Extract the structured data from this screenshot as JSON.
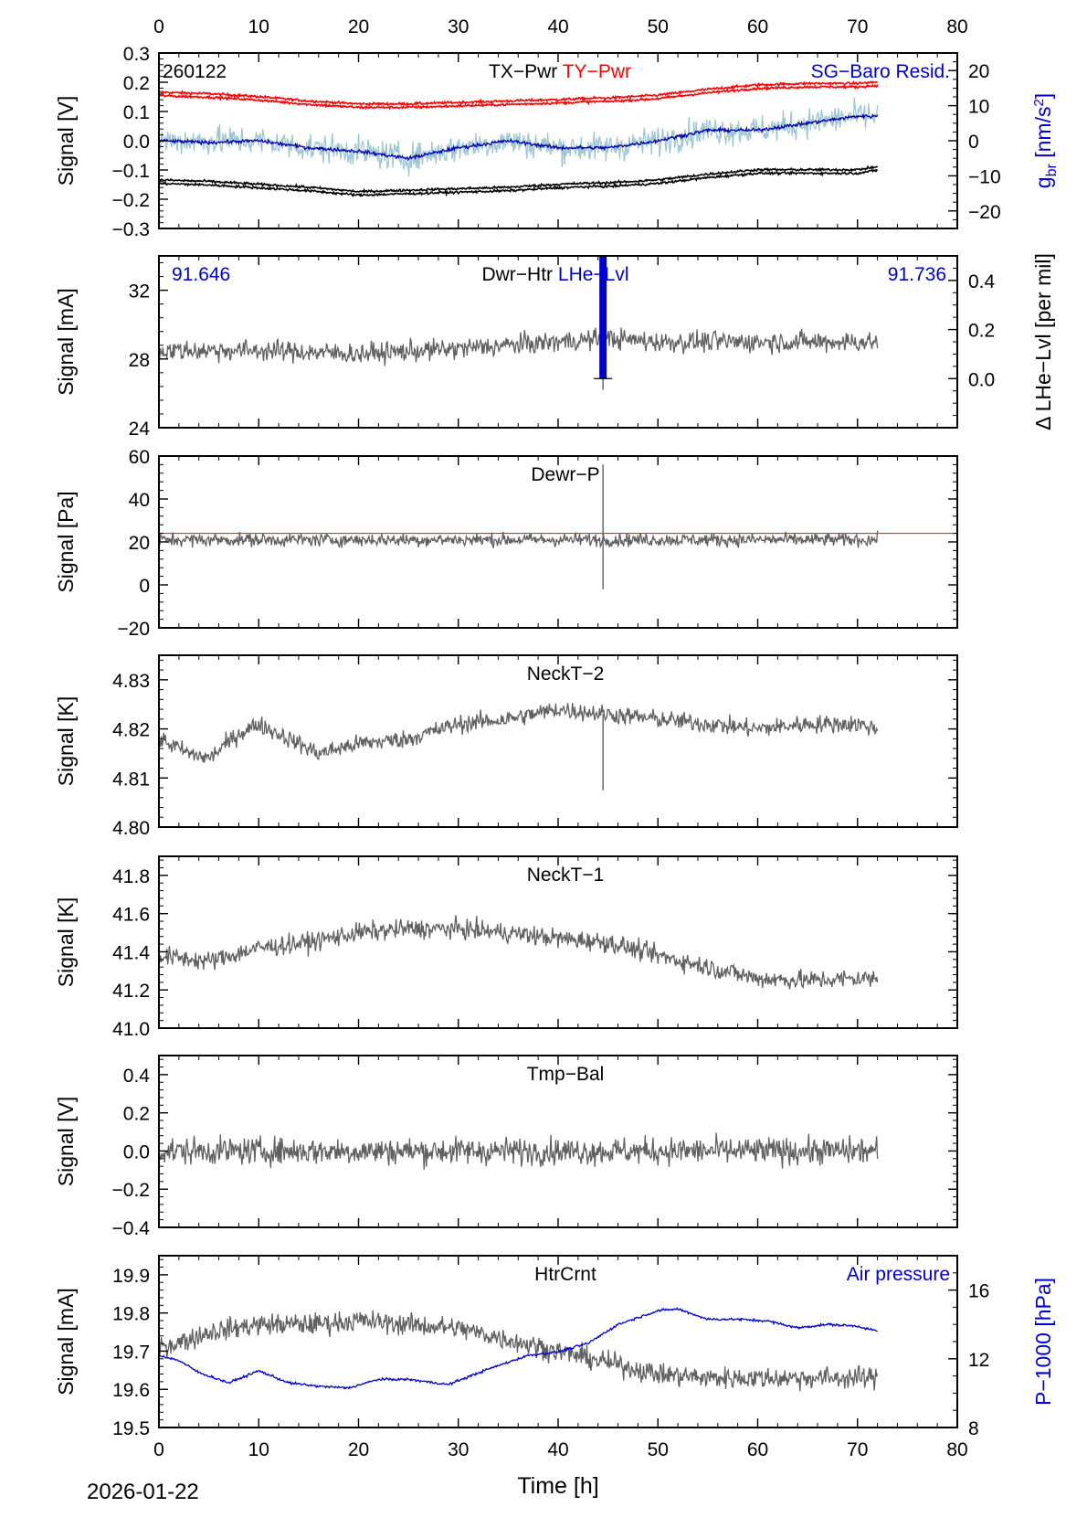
{
  "chart_data": {
    "type": "line",
    "time_series_note_free": true,
    "x_axis": {
      "label": "Time [h]",
      "range": [
        0,
        80
      ],
      "ticks": [
        "0",
        "10",
        "20",
        "30",
        "40",
        "50",
        "60",
        "70",
        "80"
      ]
    },
    "date_label": "2026-01-22",
    "panels": [
      {
        "title_parts": [
          {
            "text": "TX−Pwr",
            "color": "#000000"
          },
          {
            "text": "TY−Pwr",
            "color": "#ff0000"
          }
        ],
        "left_corner_text": "260122",
        "right_text": "SG−Baro Resid.",
        "right_text_color": "#0000cc",
        "ylabel": "Signal [V]",
        "ylim": [
          -0.3,
          0.3
        ],
        "yticks": [
          "−0.3",
          "−0.2",
          "−0.1",
          "0.0",
          "0.1",
          "0.2",
          "0.3"
        ],
        "y2": {
          "label_main": "g",
          "label_sub": "br",
          "label_tail": " [nm/s",
          "label_sup": "2",
          "label_end": "]",
          "color": "#0000cc",
          "ylim": [
            -25,
            25
          ],
          "ticks": [
            "−20",
            "−10",
            "0",
            "10",
            "20"
          ]
        },
        "series": [
          {
            "axis": "y",
            "color": "#ff0000",
            "x": [
              0,
              5,
              10,
              15,
              20,
              25,
              30,
              35,
              40,
              44,
              45,
              50,
              55,
              60,
              65,
              70,
              72
            ],
            "y": [
              0.16,
              0.155,
              0.145,
              0.13,
              0.12,
              0.12,
              0.125,
              0.13,
              0.135,
              0.14,
              0.14,
              0.15,
              0.17,
              0.185,
              0.19,
              0.19,
              0.195
            ],
            "noise": 0.004,
            "double_offset": 0.012
          },
          {
            "axis": "y",
            "color": "#000000",
            "x": [
              0,
              5,
              10,
              15,
              20,
              25,
              30,
              35,
              40,
              44,
              45,
              50,
              55,
              60,
              65,
              70,
              72
            ],
            "y": [
              -0.14,
              -0.145,
              -0.155,
              -0.165,
              -0.18,
              -0.175,
              -0.17,
              -0.165,
              -0.155,
              -0.15,
              -0.15,
              -0.14,
              -0.12,
              -0.105,
              -0.105,
              -0.105,
              -0.095
            ],
            "noise": 0.004,
            "double_offset": 0.012
          },
          {
            "axis": "y2",
            "color": "#9fc6d4",
            "x": [
              0,
              5,
              10,
              15,
              20,
              25,
              30,
              35,
              40,
              45,
              50,
              55,
              60,
              65,
              70,
              72
            ],
            "y": [
              0,
              0,
              0,
              -2,
              -3,
              -5,
              -2,
              0,
              -2,
              -2,
              0,
              3,
              3,
              5,
              7,
              7
            ],
            "noise": 4
          },
          {
            "axis": "y2",
            "color": "#0000aa",
            "x": [
              0,
              5,
              10,
              15,
              20,
              25,
              30,
              35,
              40,
              45,
              50,
              55,
              60,
              65,
              70,
              72
            ],
            "y": [
              0,
              -0.5,
              0,
              -2,
              -3,
              -5,
              -2,
              0,
              -2,
              -2,
              0,
              3,
              3,
              5,
              7,
              7
            ],
            "noise": 0.5
          }
        ]
      },
      {
        "title_parts": [
          {
            "text": "Dwr−Htr",
            "color": "#000000"
          },
          {
            "text": "LHe−Lvl",
            "color": "#0000cc"
          }
        ],
        "left_corner_text": "91.646",
        "right_corner_text": "91.736",
        "corner_color": "#0000cc",
        "ylabel": "Signal [mA]",
        "ylim": [
          24,
          34
        ],
        "yticks": [
          "24",
          "28",
          "32"
        ],
        "y2": {
          "label_main": "Δ LHe−Lvl [per mil]",
          "color": "#000000",
          "ylim": [
            -0.2,
            0.5
          ],
          "ticks": [
            "0.0",
            "0.2",
            "0.4"
          ]
        },
        "series": [
          {
            "axis": "y",
            "color": "#606060",
            "x": [
              0,
              10,
              20,
              30,
              40,
              45,
              50,
              60,
              70,
              72
            ],
            "y": [
              28.5,
              28.5,
              28.3,
              28.6,
              29.0,
              29.2,
              29.0,
              29.0,
              29.0,
              29.0
            ],
            "noise": 0.6,
            "spike_at": 44.5,
            "spike_value": 26.2
          }
        ],
        "level_bar": {
          "x": 44.5,
          "y_top": 0.5,
          "y_bottom": 0.0,
          "color": "#0000cc"
        }
      },
      {
        "title_parts": [
          {
            "text": "Dewr−P",
            "color": "#000000"
          }
        ],
        "ylabel": "Signal [Pa]",
        "ylim": [
          -20,
          60
        ],
        "yticks": [
          "−20",
          "0",
          "20",
          "40",
          "60"
        ],
        "series": [
          {
            "axis": "y",
            "color": "#606060",
            "x": [
              0,
              72
            ],
            "y": [
              21,
              21
            ],
            "noise": 3,
            "spike_at": 44.5,
            "spike_value": 56,
            "spike_min": -2
          }
        ],
        "reference_line": {
          "y": 24,
          "x": [
            0,
            80
          ],
          "color": "#ff0000"
        }
      },
      {
        "title_parts": [
          {
            "text": "NeckT−2",
            "color": "#000000"
          }
        ],
        "ylabel": "Signal [K]",
        "ylim": [
          4.8,
          4.835
        ],
        "yticks": [
          "4.80",
          "4.81",
          "4.82",
          "4.83"
        ],
        "series": [
          {
            "axis": "y",
            "color": "#606060",
            "x": [
              0,
              3,
              5,
              8,
              10,
              13,
              16,
              20,
              25,
              30,
              35,
              40,
              45,
              50,
              55,
              60,
              65,
              70,
              72
            ],
            "y": [
              4.818,
              4.815,
              4.814,
              4.819,
              4.821,
              4.818,
              4.815,
              4.817,
              4.818,
              4.821,
              4.822,
              4.824,
              4.823,
              4.822,
              4.821,
              4.82,
              4.821,
              4.821,
              4.82
            ],
            "noise": 0.0018,
            "spike_at": 44.5,
            "spike_value": 4.8075
          }
        ]
      },
      {
        "title_parts": [
          {
            "text": "NeckT−1",
            "color": "#000000"
          }
        ],
        "ylabel": "Signal [K]",
        "ylim": [
          41.0,
          41.9
        ],
        "yticks": [
          "41.0",
          "41.2",
          "41.4",
          "41.6",
          "41.8"
        ],
        "series": [
          {
            "axis": "y",
            "color": "#606060",
            "x": [
              0,
              5,
              10,
              15,
              20,
              25,
              30,
              35,
              40,
              45,
              50,
              55,
              60,
              65,
              70,
              72
            ],
            "y": [
              41.38,
              41.35,
              41.42,
              41.45,
              41.5,
              41.52,
              41.52,
              41.5,
              41.47,
              41.45,
              41.38,
              41.32,
              41.26,
              41.25,
              41.26,
              41.26
            ],
            "noise": 0.05
          }
        ]
      },
      {
        "title_parts": [
          {
            "text": "Tmp−Bal",
            "color": "#000000"
          }
        ],
        "ylabel": "Signal [V]",
        "ylim": [
          -0.4,
          0.5
        ],
        "yticks": [
          "−0.4",
          "−0.2",
          "0.0",
          "0.2",
          "0.4"
        ],
        "series": [
          {
            "axis": "y",
            "color": "#606060",
            "x": [
              0,
              72
            ],
            "y": [
              0,
              0
            ],
            "noise": 0.07
          }
        ]
      },
      {
        "title_parts": [
          {
            "text": "HtrCrnt",
            "color": "#000000"
          }
        ],
        "right_text": "Air pressure",
        "right_text_color": "#0000cc",
        "ylabel": "Signal [mA]",
        "ylim": [
          19.5,
          19.95
        ],
        "yticks": [
          "19.5",
          "19.6",
          "19.7",
          "19.8",
          "19.9"
        ],
        "y2": {
          "label_main": "P−1000 [hPa]",
          "color": "#0000cc",
          "ylim": [
            8,
            18
          ],
          "ticks": [
            "8",
            "12",
            "16"
          ]
        },
        "series": [
          {
            "axis": "y",
            "color": "#606060",
            "x": [
              0,
              3,
              5,
              10,
              15,
              20,
              25,
              30,
              35,
              40,
              45,
              50,
              55,
              60,
              65,
              70,
              72
            ],
            "y": [
              19.71,
              19.73,
              19.75,
              19.77,
              19.77,
              19.78,
              19.77,
              19.76,
              19.73,
              19.7,
              19.67,
              19.64,
              19.63,
              19.63,
              19.63,
              19.63,
              19.63
            ],
            "noise": 0.028
          },
          {
            "axis": "y2",
            "color": "#0000cc",
            "x": [
              0,
              2,
              4,
              7,
              10,
              13,
              16,
              19,
              22,
              25,
              29,
              33,
              37,
              40,
              43,
              46,
              50,
              52,
              55,
              58,
              61,
              64,
              67,
              70,
              72
            ],
            "y": [
              12.2,
              11.9,
              11.2,
              10.6,
              11.3,
              10.6,
              10.4,
              10.3,
              10.8,
              10.8,
              10.5,
              11.4,
              12.2,
              12.4,
              12.9,
              14.0,
              14.8,
              14.9,
              14.3,
              14.3,
              14.2,
              13.8,
              14.0,
              13.9,
              13.6
            ],
            "noise": 0.07
          }
        ]
      }
    ]
  }
}
